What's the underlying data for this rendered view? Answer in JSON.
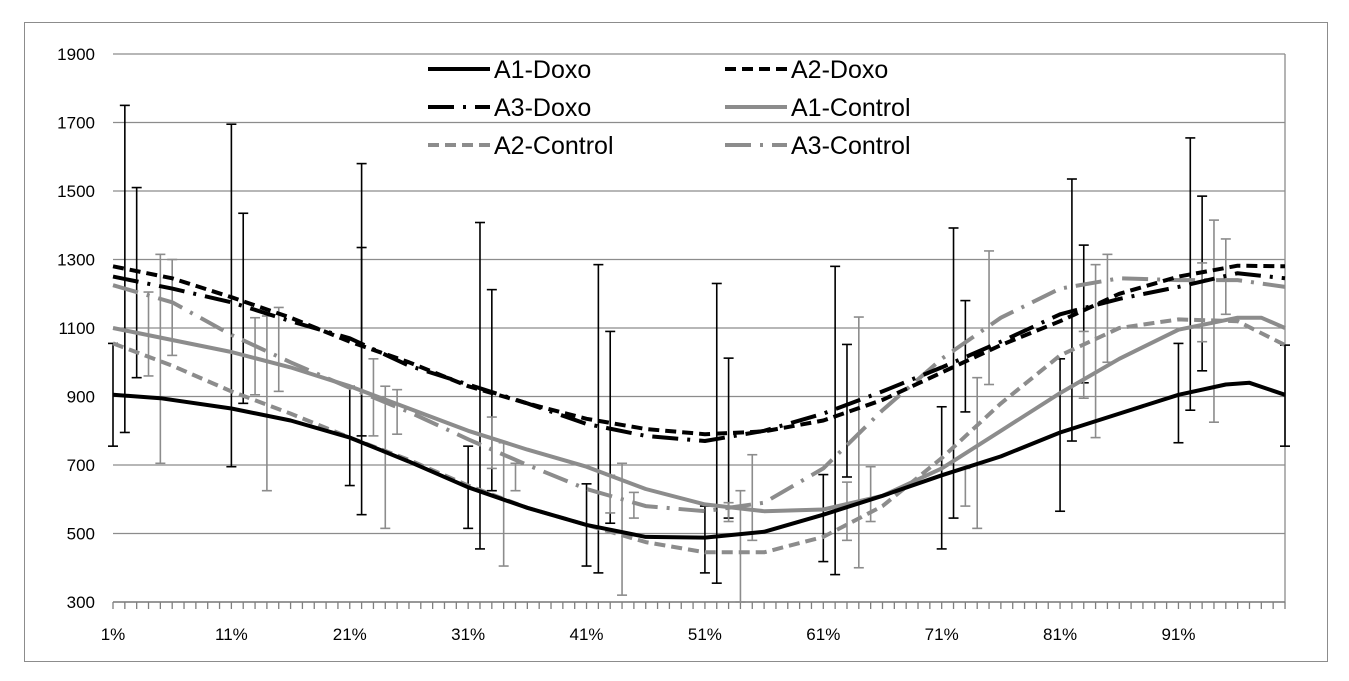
{
  "chart_data": {
    "type": "line",
    "title": "",
    "xlabel": "",
    "ylabel": "",
    "ylim": [
      300,
      1900
    ],
    "yticks": [
      300,
      500,
      700,
      900,
      1100,
      1300,
      1500,
      1700,
      1900
    ],
    "x_tick_labels": [
      "1%",
      "11%",
      "21%",
      "31%",
      "41%",
      "51%",
      "61%",
      "71%",
      "81%",
      "91%"
    ],
    "x_tick_positions": [
      1,
      11,
      21,
      31,
      41,
      51,
      61,
      71,
      81,
      91
    ],
    "xlim": [
      1,
      100
    ],
    "grid": "horizontal",
    "legend_position": "top",
    "series": [
      {
        "name": "A1-Doxo",
        "color": "#000000",
        "dash": "solid",
        "points": [
          [
            1,
            905
          ],
          [
            5,
            895
          ],
          [
            11,
            865
          ],
          [
            16,
            830
          ],
          [
            21,
            780
          ],
          [
            26,
            710
          ],
          [
            31,
            635
          ],
          [
            36,
            575
          ],
          [
            41,
            525
          ],
          [
            46,
            490
          ],
          [
            51,
            488
          ],
          [
            56,
            505
          ],
          [
            61,
            555
          ],
          [
            66,
            610
          ],
          [
            71,
            670
          ],
          [
            76,
            725
          ],
          [
            81,
            795
          ],
          [
            86,
            850
          ],
          [
            91,
            905
          ],
          [
            95,
            935
          ],
          [
            97,
            940
          ],
          [
            100,
            905
          ]
        ],
        "error_bars": [
          {
            "x": 1,
            "low": 755,
            "high": 1055
          },
          {
            "x": 11,
            "low": 695,
            "high": 1695
          },
          {
            "x": 21,
            "low": 640,
            "high": 930
          },
          {
            "x": 31,
            "low": 515,
            "high": 755
          },
          {
            "x": 41,
            "low": 405,
            "high": 645
          },
          {
            "x": 51,
            "low": 385,
            "high": 580
          },
          {
            "x": 61,
            "low": 418,
            "high": 672
          },
          {
            "x": 71,
            "low": 455,
            "high": 870
          },
          {
            "x": 81,
            "low": 565,
            "high": 1010
          },
          {
            "x": 91,
            "low": 765,
            "high": 1055
          },
          {
            "x": 100,
            "low": 755,
            "high": 1050
          }
        ]
      },
      {
        "name": "A2-Doxo",
        "color": "#000000",
        "dash": "short-dash",
        "points": [
          [
            1,
            1280
          ],
          [
            6,
            1245
          ],
          [
            11,
            1190
          ],
          [
            16,
            1130
          ],
          [
            21,
            1060
          ],
          [
            26,
            1000
          ],
          [
            31,
            930
          ],
          [
            36,
            880
          ],
          [
            41,
            835
          ],
          [
            46,
            805
          ],
          [
            51,
            790
          ],
          [
            56,
            798
          ],
          [
            61,
            830
          ],
          [
            66,
            890
          ],
          [
            71,
            970
          ],
          [
            76,
            1050
          ],
          [
            81,
            1120
          ],
          [
            86,
            1200
          ],
          [
            91,
            1250
          ],
          [
            96,
            1282
          ],
          [
            100,
            1280
          ]
        ],
        "error_bars": [
          {
            "x": 2,
            "low": 795,
            "high": 1750
          },
          {
            "x": 22,
            "low": 555,
            "high": 1580
          },
          {
            "x": 32,
            "low": 455,
            "high": 1408
          },
          {
            "x": 42,
            "low": 385,
            "high": 1285
          },
          {
            "x": 52,
            "low": 355,
            "high": 1230
          },
          {
            "x": 62,
            "low": 380,
            "high": 1280
          },
          {
            "x": 72,
            "low": 545,
            "high": 1392
          },
          {
            "x": 82,
            "low": 770,
            "high": 1535
          },
          {
            "x": 92,
            "low": 860,
            "high": 1655
          }
        ]
      },
      {
        "name": "A3-Doxo",
        "color": "#000000",
        "dash": "dash-dot",
        "points": [
          [
            1,
            1250
          ],
          [
            6,
            1215
          ],
          [
            11,
            1175
          ],
          [
            16,
            1120
          ],
          [
            21,
            1070
          ],
          [
            26,
            990
          ],
          [
            31,
            935
          ],
          [
            36,
            880
          ],
          [
            41,
            820
          ],
          [
            46,
            785
          ],
          [
            51,
            770
          ],
          [
            56,
            800
          ],
          [
            61,
            850
          ],
          [
            66,
            915
          ],
          [
            71,
            985
          ],
          [
            76,
            1060
          ],
          [
            81,
            1140
          ],
          [
            86,
            1185
          ],
          [
            91,
            1220
          ],
          [
            96,
            1260
          ],
          [
            100,
            1245
          ]
        ],
        "error_bars": [
          {
            "x": 3,
            "low": 955,
            "high": 1510
          },
          {
            "x": 12,
            "low": 880,
            "high": 1435
          },
          {
            "x": 22,
            "low": 785,
            "high": 1335
          },
          {
            "x": 33,
            "low": 625,
            "high": 1212
          },
          {
            "x": 43,
            "low": 530,
            "high": 1090
          },
          {
            "x": 53,
            "low": 545,
            "high": 1012
          },
          {
            "x": 63,
            "low": 665,
            "high": 1052
          },
          {
            "x": 73,
            "low": 855,
            "high": 1180
          },
          {
            "x": 83,
            "low": 940,
            "high": 1342
          },
          {
            "x": 93,
            "low": 975,
            "high": 1485
          }
        ]
      },
      {
        "name": "A1-Control",
        "color": "#8c8c8c",
        "dash": "solid",
        "points": [
          [
            1,
            1100
          ],
          [
            6,
            1065
          ],
          [
            11,
            1030
          ],
          [
            16,
            985
          ],
          [
            21,
            930
          ],
          [
            26,
            865
          ],
          [
            31,
            800
          ],
          [
            36,
            745
          ],
          [
            41,
            695
          ],
          [
            46,
            630
          ],
          [
            51,
            585
          ],
          [
            56,
            565
          ],
          [
            61,
            570
          ],
          [
            66,
            610
          ],
          [
            71,
            690
          ],
          [
            76,
            800
          ],
          [
            81,
            910
          ],
          [
            86,
            1010
          ],
          [
            91,
            1095
          ],
          [
            96,
            1130
          ],
          [
            98,
            1130
          ],
          [
            100,
            1100
          ]
        ],
        "error_bars": [
          {
            "x": 5,
            "low": 705,
            "high": 1315
          },
          {
            "x": 14,
            "low": 625,
            "high": 1135
          },
          {
            "x": 24,
            "low": 515,
            "high": 930
          },
          {
            "x": 34,
            "low": 405,
            "high": 765
          },
          {
            "x": 44,
            "low": 320,
            "high": 705
          },
          {
            "x": 54,
            "low": 300,
            "high": 625
          },
          {
            "x": 64,
            "low": 400,
            "high": 1132
          },
          {
            "x": 74,
            "low": 515,
            "high": 955
          },
          {
            "x": 84,
            "low": 780,
            "high": 1285
          },
          {
            "x": 94,
            "low": 825,
            "high": 1415
          }
        ]
      },
      {
        "name": "A2-Control",
        "color": "#8c8c8c",
        "dash": "short-dash",
        "points": [
          [
            1,
            1055
          ],
          [
            6,
            990
          ],
          [
            11,
            915
          ],
          [
            16,
            850
          ],
          [
            21,
            780
          ],
          [
            26,
            715
          ],
          [
            31,
            640
          ],
          [
            36,
            575
          ],
          [
            41,
            525
          ],
          [
            46,
            475
          ],
          [
            51,
            445
          ],
          [
            56,
            445
          ],
          [
            61,
            490
          ],
          [
            66,
            580
          ],
          [
            71,
            720
          ],
          [
            76,
            880
          ],
          [
            81,
            1020
          ],
          [
            86,
            1100
          ],
          [
            91,
            1125
          ],
          [
            96,
            1120
          ],
          [
            100,
            1050
          ]
        ],
        "error_bars": [
          {
            "x": 6,
            "low": 1020,
            "high": 1300
          },
          {
            "x": 15,
            "low": 915,
            "high": 1160
          },
          {
            "x": 25,
            "low": 790,
            "high": 920
          },
          {
            "x": 35,
            "low": 625,
            "high": 705
          },
          {
            "x": 45,
            "low": 545,
            "high": 620
          },
          {
            "x": 55,
            "low": 480,
            "high": 730
          },
          {
            "x": 65,
            "low": 535,
            "high": 695
          },
          {
            "x": 75,
            "low": 935,
            "high": 1325
          },
          {
            "x": 85,
            "low": 1000,
            "high": 1315
          },
          {
            "x": 95,
            "low": 1140,
            "high": 1360
          }
        ]
      },
      {
        "name": "A3-Control",
        "color": "#8c8c8c",
        "dash": "dash-dot",
        "points": [
          [
            1,
            1225
          ],
          [
            6,
            1175
          ],
          [
            11,
            1080
          ],
          [
            16,
            1000
          ],
          [
            21,
            925
          ],
          [
            26,
            855
          ],
          [
            31,
            775
          ],
          [
            36,
            700
          ],
          [
            41,
            630
          ],
          [
            46,
            580
          ],
          [
            51,
            565
          ],
          [
            56,
            590
          ],
          [
            61,
            690
          ],
          [
            66,
            860
          ],
          [
            71,
            1010
          ],
          [
            76,
            1130
          ],
          [
            81,
            1215
          ],
          [
            86,
            1245
          ],
          [
            91,
            1240
          ],
          [
            96,
            1240
          ],
          [
            100,
            1220
          ]
        ],
        "error_bars": [
          {
            "x": 4,
            "low": 960,
            "high": 1205
          },
          {
            "x": 13,
            "low": 905,
            "high": 1130
          },
          {
            "x": 23,
            "low": 785,
            "high": 1010
          },
          {
            "x": 33,
            "low": 690,
            "high": 840
          },
          {
            "x": 43,
            "low": 560,
            "high": 670
          },
          {
            "x": 53,
            "low": 535,
            "high": 590
          },
          {
            "x": 63,
            "low": 480,
            "high": 650
          },
          {
            "x": 73,
            "low": 580,
            "high": 690
          },
          {
            "x": 83,
            "low": 895,
            "high": 1090
          },
          {
            "x": 93,
            "low": 1060,
            "high": 1290
          }
        ]
      }
    ]
  }
}
